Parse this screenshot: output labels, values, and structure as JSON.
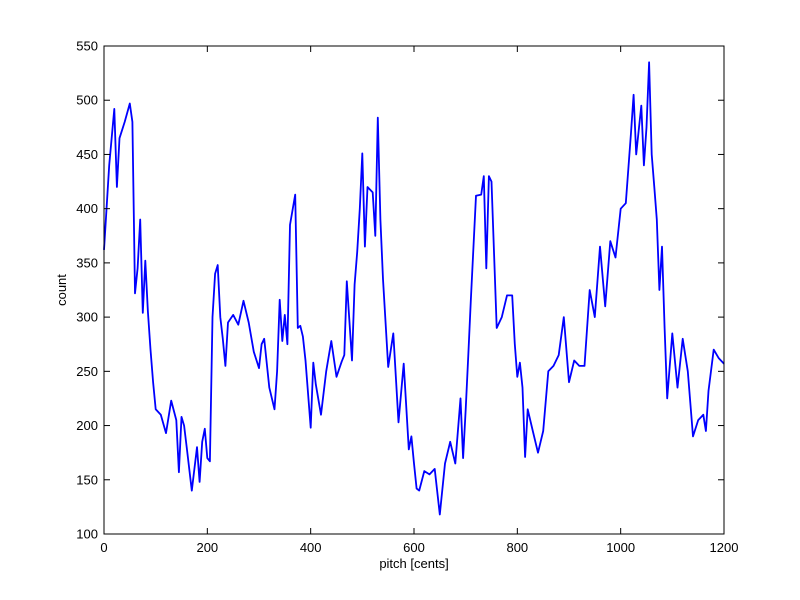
{
  "chart_data": {
    "type": "line",
    "title": "",
    "xlabel": "pitch [cents]",
    "ylabel": "count",
    "xlim": [
      0,
      1200
    ],
    "ylim": [
      100,
      550
    ],
    "grid": false,
    "x_ticks": [
      0,
      200,
      400,
      600,
      800,
      1000,
      1200
    ],
    "y_ticks": [
      100,
      150,
      200,
      250,
      300,
      350,
      400,
      450,
      500,
      550
    ],
    "colors": {
      "line": "#0000ff",
      "axes": "#000000",
      "background": "#ffffff"
    },
    "series": [
      {
        "x": [
          0,
          10,
          20,
          25,
          30,
          40,
          50,
          55,
          60,
          65,
          70,
          75,
          80,
          85,
          90,
          95,
          100,
          110,
          120,
          130,
          140,
          145,
          150,
          155,
          160,
          170,
          180,
          185,
          190,
          195,
          200,
          205,
          210,
          215,
          220,
          225,
          230,
          235,
          240,
          250,
          260,
          270,
          280,
          290,
          300,
          305,
          310,
          320,
          330,
          335,
          340,
          345,
          350,
          355,
          360,
          370,
          375,
          380,
          385,
          390,
          400,
          405,
          410,
          420,
          430,
          440,
          450,
          460,
          465,
          470,
          480,
          485,
          490,
          495,
          500,
          505,
          510,
          520,
          525,
          530,
          535,
          540,
          550,
          560,
          570,
          580,
          590,
          595,
          600,
          605,
          610,
          620,
          630,
          640,
          650,
          660,
          670,
          680,
          690,
          695,
          700,
          705,
          710,
          720,
          730,
          735,
          740,
          745,
          750,
          760,
          770,
          780,
          790,
          795,
          800,
          805,
          810,
          815,
          820,
          830,
          840,
          850,
          860,
          870,
          880,
          890,
          900,
          910,
          920,
          930,
          940,
          950,
          960,
          970,
          980,
          990,
          1000,
          1010,
          1020,
          1025,
          1030,
          1040,
          1045,
          1050,
          1055,
          1060,
          1065,
          1070,
          1075,
          1080,
          1085,
          1090,
          1100,
          1110,
          1120,
          1130,
          1140,
          1150,
          1160,
          1165,
          1170,
          1180,
          1190,
          1200
        ],
        "y": [
          362,
          440,
          492,
          420,
          465,
          480,
          497,
          480,
          322,
          345,
          390,
          304,
          352,
          305,
          270,
          240,
          215,
          210,
          193,
          223,
          205,
          157,
          208,
          200,
          180,
          140,
          180,
          148,
          185,
          197,
          170,
          167,
          300,
          340,
          348,
          300,
          280,
          255,
          295,
          302,
          293,
          315,
          295,
          268,
          253,
          275,
          280,
          235,
          215,
          250,
          316,
          278,
          302,
          275,
          385,
          413,
          290,
          292,
          282,
          260,
          198,
          258,
          238,
          210,
          250,
          278,
          245,
          259,
          265,
          333,
          260,
          330,
          360,
          400,
          451,
          365,
          420,
          415,
          375,
          484,
          390,
          335,
          254,
          285,
          203,
          257,
          178,
          190,
          165,
          142,
          140,
          158,
          155,
          160,
          118,
          165,
          185,
          165,
          225,
          170,
          215,
          265,
          315,
          412,
          413,
          430,
          345,
          430,
          425,
          290,
          300,
          320,
          320,
          275,
          245,
          258,
          235,
          171,
          215,
          195,
          175,
          195,
          250,
          255,
          265,
          300,
          240,
          260,
          255,
          255,
          325,
          300,
          365,
          310,
          370,
          355,
          400,
          405,
          470,
          505,
          450,
          495,
          440,
          475,
          535,
          450,
          420,
          390,
          325,
          365,
          290,
          225,
          285,
          235,
          280,
          250,
          190,
          205,
          210,
          195,
          232,
          270,
          262,
          257
        ]
      }
    ]
  }
}
